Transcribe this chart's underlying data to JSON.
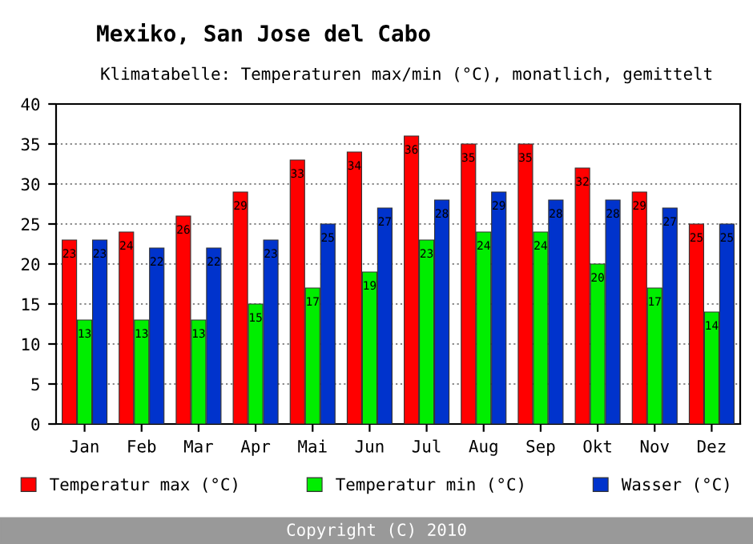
{
  "chart_data": {
    "type": "bar",
    "title": "Mexiko, San Jose del Cabo",
    "subtitle": "Klimatabelle: Temperaturen max/min (°C), monatlich, gemittelt",
    "categories": [
      "Jan",
      "Feb",
      "Mar",
      "Apr",
      "Mai",
      "Jun",
      "Jul",
      "Aug",
      "Sep",
      "Okt",
      "Nov",
      "Dez"
    ],
    "series": [
      {
        "name": "Temperatur max (°C)",
        "color": "#ff0000",
        "values": [
          23,
          24,
          26,
          29,
          33,
          34,
          36,
          35,
          35,
          32,
          29,
          25
        ]
      },
      {
        "name": "Temperatur min (°C)",
        "color": "#00ee00",
        "values": [
          13,
          13,
          13,
          15,
          17,
          19,
          23,
          24,
          24,
          20,
          17,
          14
        ]
      },
      {
        "name": "Wasser (°C)",
        "color": "#0033cc",
        "values": [
          23,
          22,
          22,
          23,
          25,
          27,
          28,
          29,
          28,
          28,
          27,
          25
        ]
      }
    ],
    "ylim": [
      0,
      40
    ],
    "yticks": [
      0,
      5,
      10,
      15,
      20,
      25,
      30,
      35,
      40
    ],
    "grid": "y",
    "legend": "bottom",
    "data_labels": true,
    "annotations": [
      "Copyright (C) 2010"
    ]
  }
}
